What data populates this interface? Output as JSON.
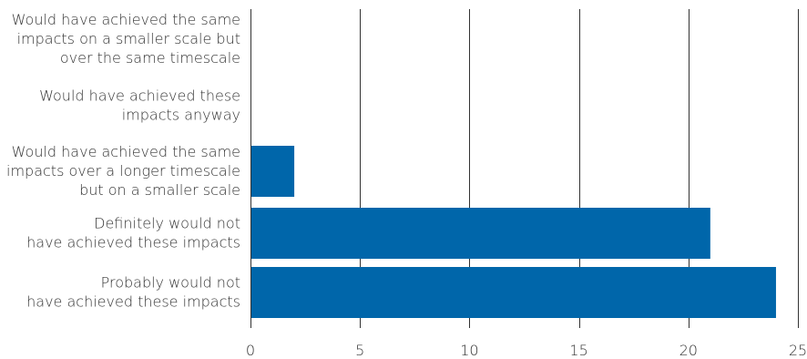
{
  "chart_data": {
    "type": "bar",
    "orientation": "horizontal",
    "categories": [
      "Would have achieved the same impacts on a smaller scale but over the same timescale",
      "Would have achieved these impacts anyway",
      "Would have achieved the same impacts over a longer timescale but on a smaller scale",
      "Definitely would not have achieved these impacts",
      "Probably would not have achieved these impacts"
    ],
    "category_lines": [
      [
        "Would have achieved the same",
        "impacts on a smaller scale but",
        "over the same timescale"
      ],
      [
        "Would have achieved these",
        "impacts anyway"
      ],
      [
        "Would have achieved the same",
        "impacts over a longer timescale",
        "but on a smaller scale"
      ],
      [
        "Definitely would not",
        "have achieved these impacts"
      ],
      [
        "Probably would not",
        "have achieved these impacts"
      ]
    ],
    "values": [
      0,
      0,
      2,
      21,
      24
    ],
    "xlim": [
      0,
      25
    ],
    "xticks": [
      0,
      5,
      10,
      15,
      20,
      25
    ],
    "title": "",
    "xlabel": "",
    "ylabel": "",
    "grid": "vertical",
    "bar_color": "#0066aa",
    "grid_color": "#333333",
    "text_color": "#333333"
  }
}
